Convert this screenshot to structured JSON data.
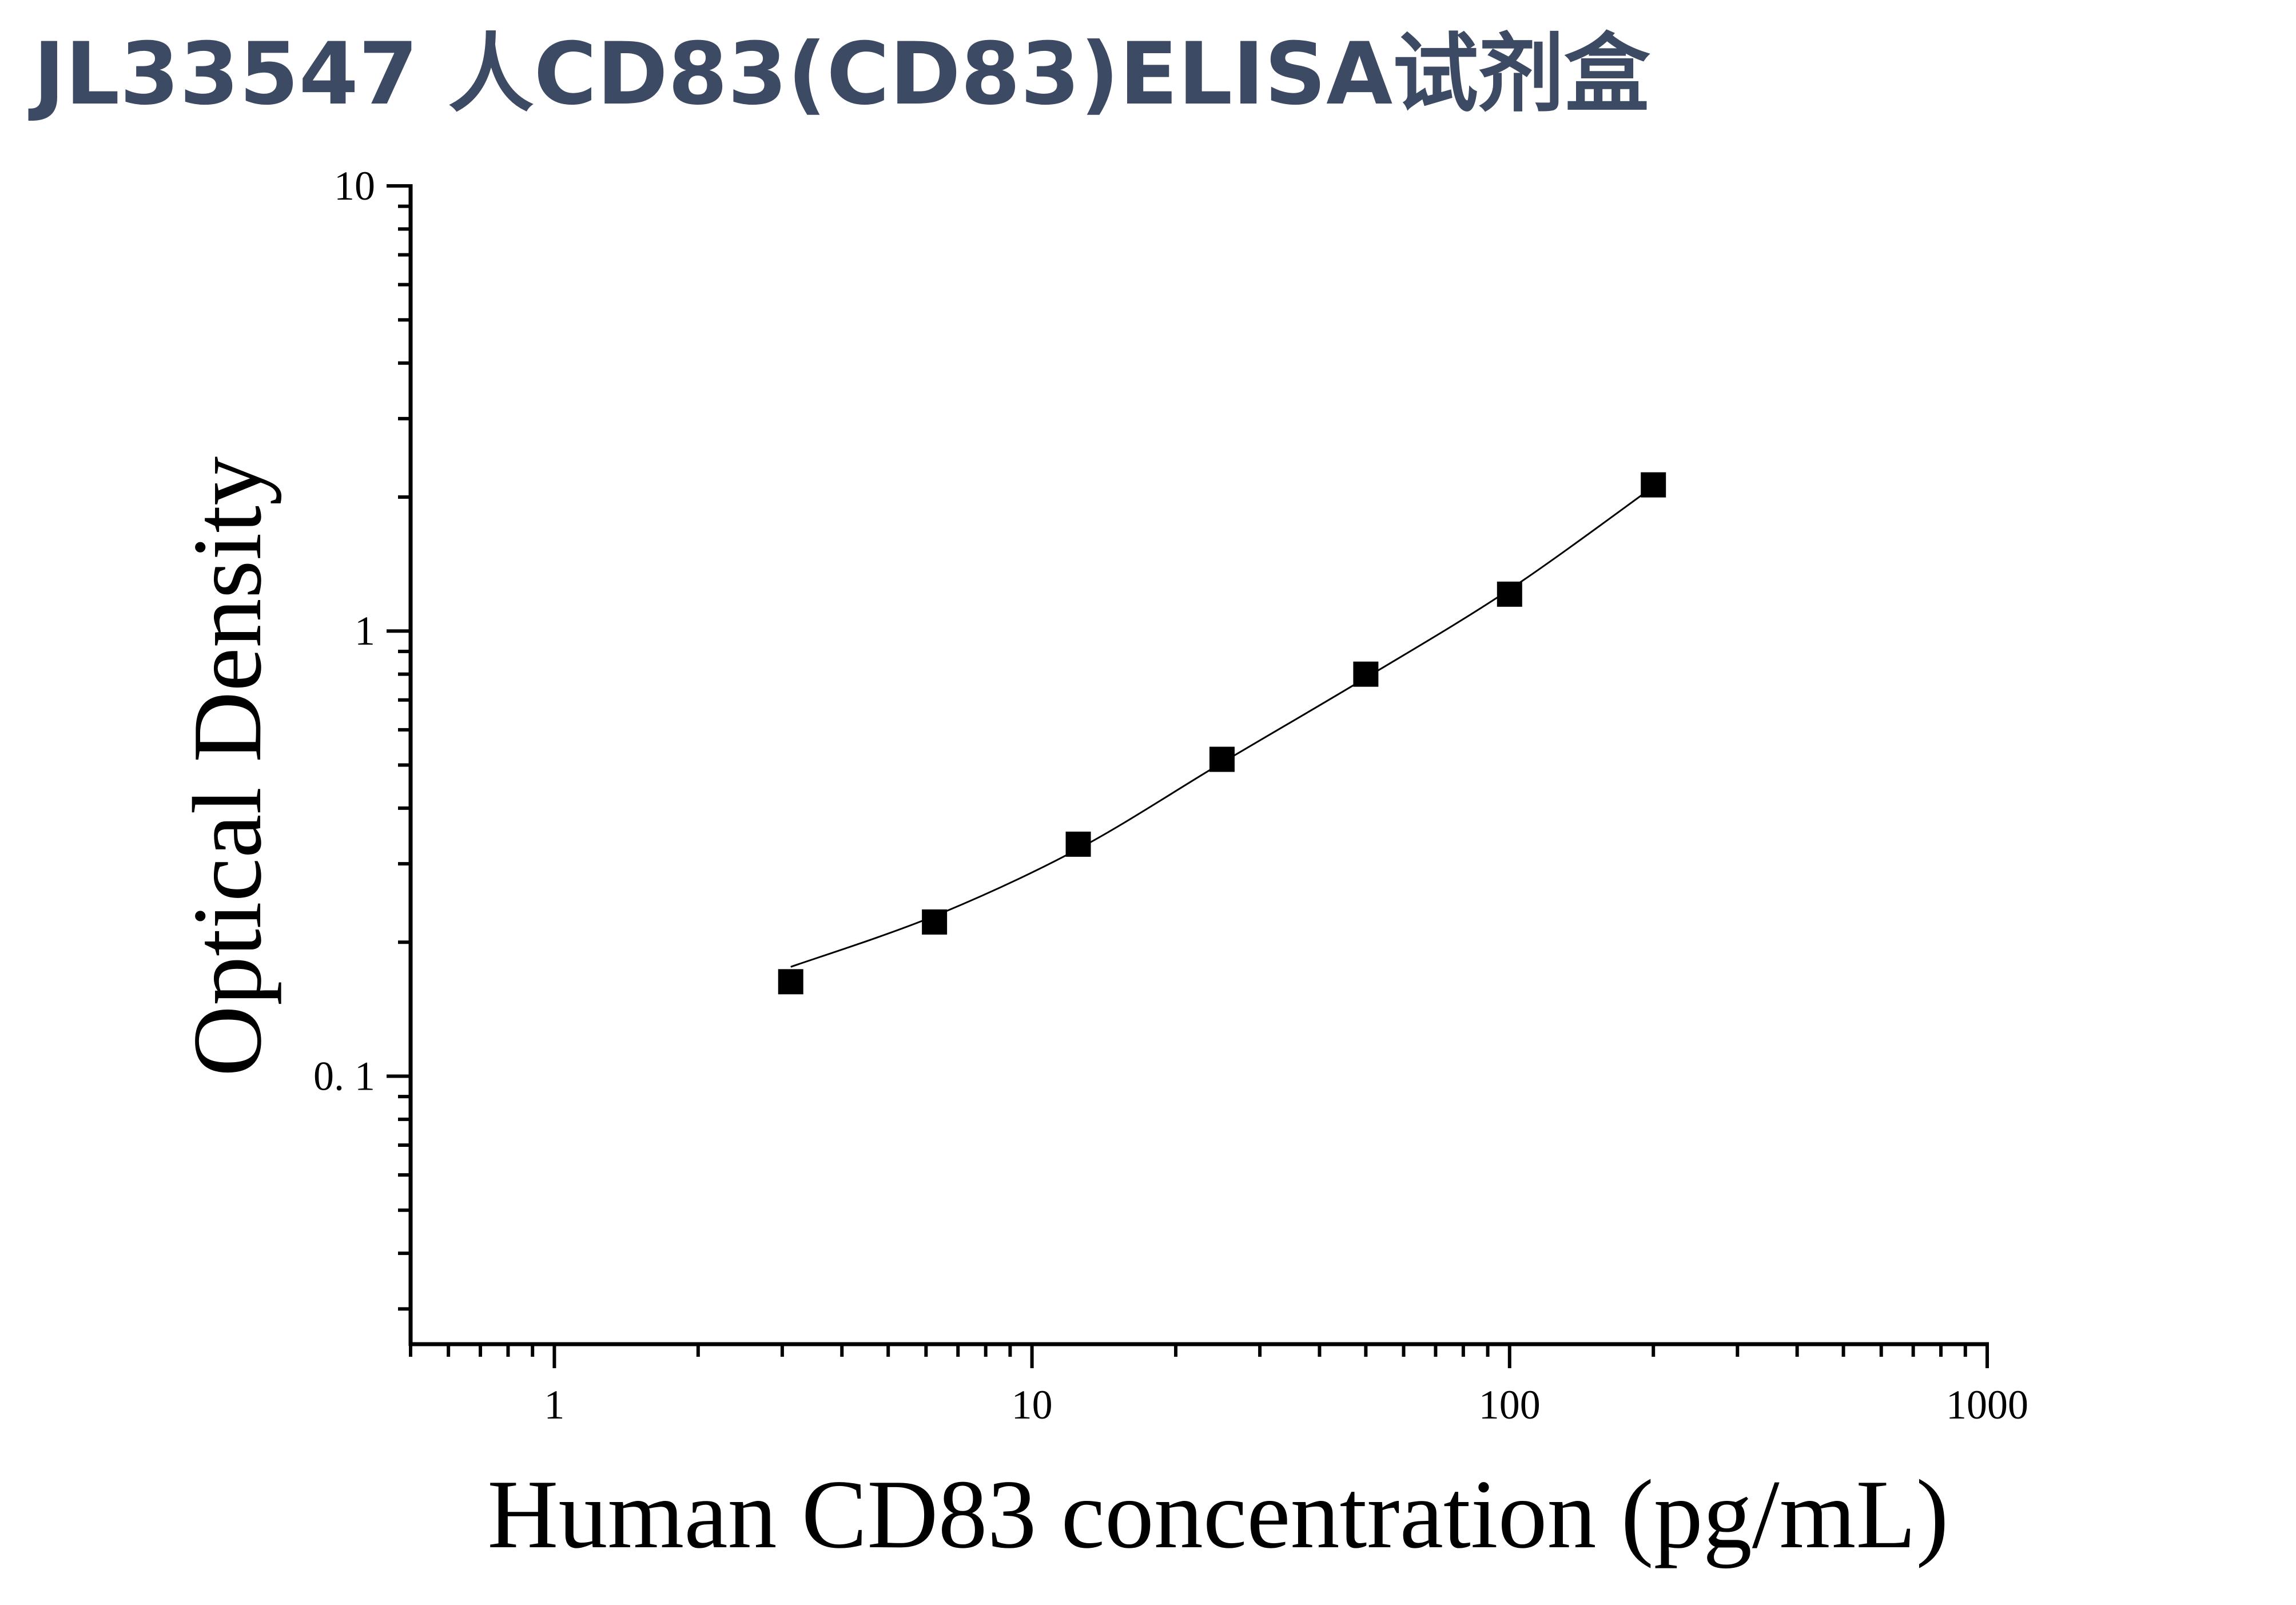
{
  "title": "JL33547 人CD83(CD83)ELISA试剂盒",
  "chart_data": {
    "type": "scatter",
    "xlabel": "Human CD83 concentration (pg/mL)",
    "ylabel": "Optical Density",
    "xscale": "log",
    "yscale": "log",
    "xlim": [
      0.5,
      1000
    ],
    "ylim": [
      0.025,
      10
    ],
    "x_ticks": [
      1,
      10,
      100,
      1000
    ],
    "x_tick_labels": [
      "1",
      "10",
      "100",
      "1000"
    ],
    "y_ticks": [
      0.1,
      1,
      10
    ],
    "y_tick_labels": [
      "0. 1",
      "1",
      "10"
    ],
    "grid": false,
    "legend": "none",
    "series": [
      {
        "marker": "square",
        "color": "#000000",
        "x": [
          3.125,
          6.25,
          12.5,
          25,
          50,
          100,
          200
        ],
        "y": [
          0.163,
          0.222,
          0.332,
          0.515,
          0.8,
          1.21,
          2.13
        ]
      }
    ],
    "fit_curve": {
      "type": "smooth",
      "color": "#000000",
      "x": [
        3.125,
        6.25,
        12.5,
        25,
        50,
        100,
        200
      ],
      "y": [
        0.176,
        0.229,
        0.324,
        0.506,
        0.785,
        1.24,
        2.11
      ]
    }
  }
}
